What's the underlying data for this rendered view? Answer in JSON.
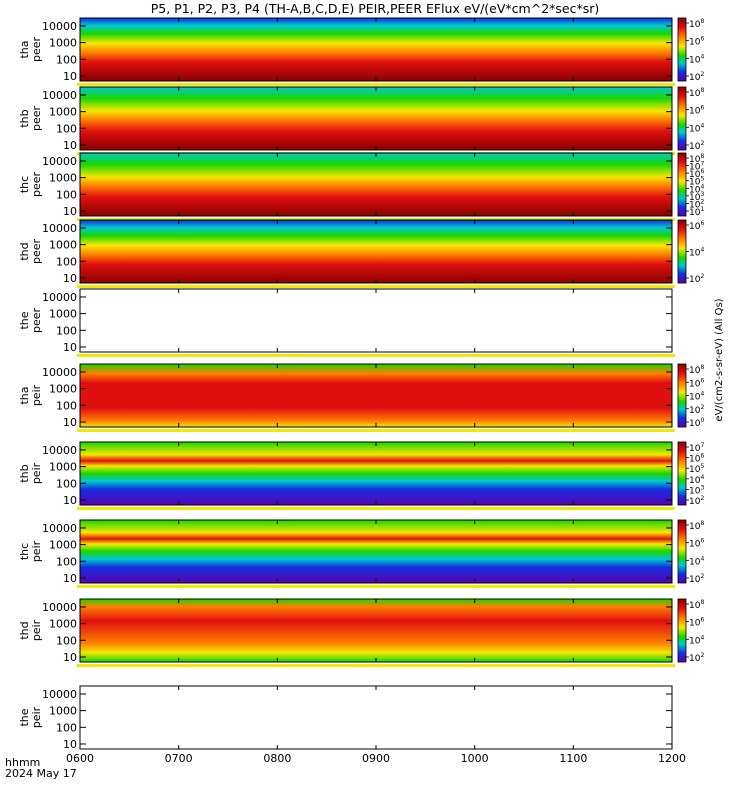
{
  "title": "P5, P1, P2, P3, P4 (TH-A,B,C,D,E) PEIR,PEER EFlux eV/(eV*cm^2*sec*sr)",
  "footer": {
    "time_label": "hhmm",
    "date_label": "2024 May 17"
  },
  "colors": {
    "dark_red": "#8b0000",
    "red": "#e01010",
    "orange": "#ff7f00",
    "yellow": "#f5e800",
    "green": "#19d600",
    "cyan": "#00c8d0",
    "blue": "#1430e0",
    "purple": "#5a00b0"
  },
  "chart_data": {
    "type": "heatmap",
    "title": "P5, P1, P2, P3, P4 (TH-A,B,C,D,E) PEIR,PEER EFlux eV/(eV*cm^2*sec*sr)",
    "x_range": [
      "0600",
      "1200"
    ],
    "x_ticks": [
      "0600",
      "0700",
      "0800",
      "0900",
      "1000",
      "1100",
      "1200"
    ],
    "y_scale": "log",
    "y_range": [
      5,
      30000
    ],
    "y_ticks": [
      "10",
      "100",
      "1000",
      "10000"
    ],
    "colorbar_scale": "log",
    "panels": [
      {
        "label": [
          "tha",
          "peer"
        ],
        "has_data": true,
        "colorbar_label": "eV/(cm2-s-sr-eV) (All Qs)",
        "colorbar_ticks": [
          "10^2",
          "10^4",
          "10^6",
          "10^8"
        ]
      },
      {
        "label": [
          "thb",
          "peer"
        ],
        "has_data": true,
        "colorbar_label": "eV/(cm2-s-sr-eV) (All Qs)",
        "colorbar_ticks": [
          "10^2",
          "10^4",
          "10^6",
          "10^8"
        ]
      },
      {
        "label": [
          "thc",
          "peer"
        ],
        "has_data": true,
        "colorbar_label": "eV/(cm2-s-sr-eV) (All Qs)",
        "colorbar_ticks": [
          "10^1",
          "10^2",
          "10^3",
          "10^4",
          "10^5",
          "10^6",
          "10^7",
          "10^8"
        ]
      },
      {
        "label": [
          "thd",
          "peer"
        ],
        "has_data": true,
        "colorbar_label": "eV/(cm2-s-sr-eV) (All Qs)",
        "colorbar_ticks": [
          "10^2",
          "10^4",
          "10^6"
        ]
      },
      {
        "label": [
          "the",
          "peer"
        ],
        "has_data": false,
        "colorbar_label": "eV/(cm2-s-sr-eV) (All Qs)",
        "colorbar_ticks": []
      },
      {
        "label": [
          "tha",
          "peir"
        ],
        "has_data": true,
        "colorbar_label": "eV/(cm2-s-sr-eV)",
        "colorbar_ticks": [
          "10^0",
          "10^2",
          "10^4",
          "10^6",
          "10^8"
        ]
      },
      {
        "label": [
          "thb",
          "peir"
        ],
        "has_data": true,
        "colorbar_label": "eV/(cm2-s-sr-eV)",
        "colorbar_ticks": [
          "10^2",
          "10^3",
          "10^4",
          "10^5",
          "10^6",
          "10^7"
        ]
      },
      {
        "label": [
          "thc",
          "peir"
        ],
        "has_data": true,
        "colorbar_label": "eV/(cm2-s-sr-eV)",
        "colorbar_ticks": [
          "10^2",
          "10^4",
          "10^6",
          "10^8"
        ]
      },
      {
        "label": [
          "thd",
          "peir"
        ],
        "has_data": true,
        "colorbar_label": "eV/(cm2-s-sr-eV)",
        "colorbar_ticks": [
          "10^2",
          "10^4",
          "10^6",
          "10^8"
        ]
      },
      {
        "label": [
          "the",
          "peir"
        ],
        "has_data": false,
        "colorbar_label": "",
        "colorbar_ticks": []
      }
    ]
  }
}
